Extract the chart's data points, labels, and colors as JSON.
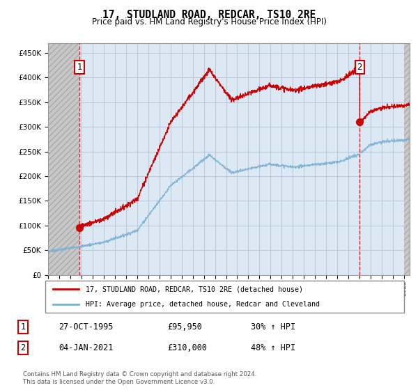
{
  "title": "17, STUDLAND ROAD, REDCAR, TS10 2RE",
  "subtitle": "Price paid vs. HM Land Registry's House Price Index (HPI)",
  "ylabel_values": [
    "£0",
    "£50K",
    "£100K",
    "£150K",
    "£200K",
    "£250K",
    "£300K",
    "£350K",
    "£400K",
    "£450K"
  ],
  "ylim": [
    0,
    470000
  ],
  "xlim_start": 1993.0,
  "xlim_end": 2025.5,
  "xticks": [
    1993,
    1994,
    1995,
    1996,
    1997,
    1998,
    1999,
    2000,
    2001,
    2002,
    2003,
    2004,
    2005,
    2006,
    2007,
    2008,
    2009,
    2010,
    2011,
    2012,
    2013,
    2014,
    2015,
    2016,
    2017,
    2018,
    2019,
    2020,
    2021,
    2022,
    2023,
    2024,
    2025
  ],
  "sale1_x": 1995.83,
  "sale1_y": 95950,
  "sale2_x": 2021.01,
  "sale2_y": 310000,
  "sale_color": "#cc0000",
  "hpi_color": "#7ab0d4",
  "legend_label1": "17, STUDLAND ROAD, REDCAR, TS10 2RE (detached house)",
  "legend_label2": "HPI: Average price, detached house, Redcar and Cleveland",
  "annotation1_label": "27-OCT-1995",
  "annotation1_price": "£95,950",
  "annotation1_hpi": "30% ↑ HPI",
  "annotation2_label": "04-JAN-2021",
  "annotation2_price": "£310,000",
  "annotation2_hpi": "48% ↑ HPI",
  "footer": "Contains HM Land Registry data © Crown copyright and database right 2024.\nThis data is licensed under the Open Government Licence v3.0.",
  "plot_bg": "#dde8f5",
  "hatch_bg": "#d0d0d0",
  "grid_color": "#b8c8d8"
}
